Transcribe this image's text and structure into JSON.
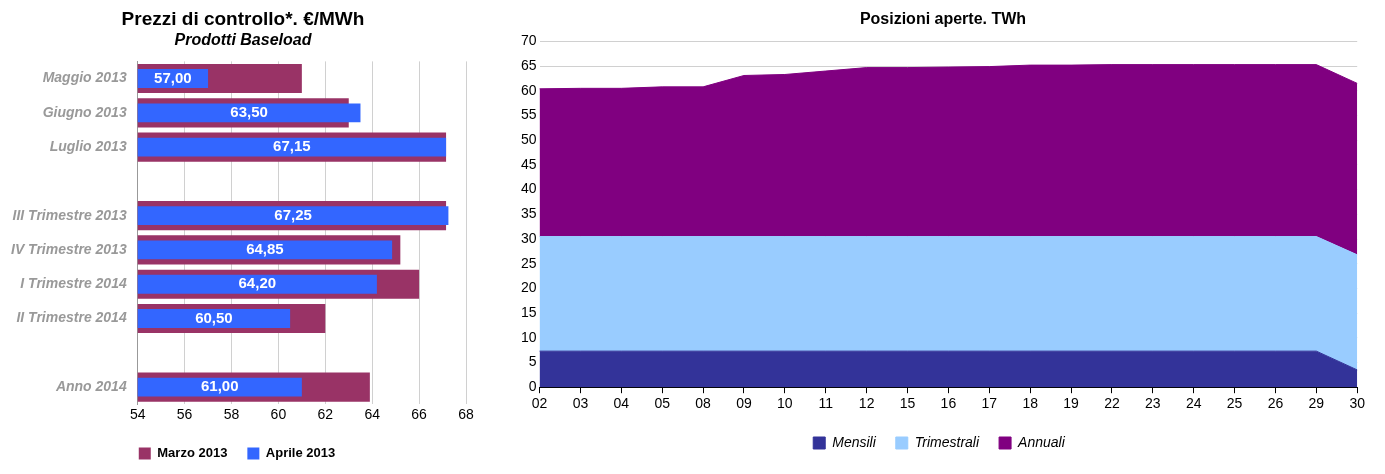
{
  "chart_data": [
    {
      "type": "bar",
      "orientation": "horizontal",
      "title": "Prezzi di controllo*. €/MWh",
      "subtitle": "Prodotti Baseload",
      "categories": [
        "Maggio 2013",
        "Giugno 2013",
        "Luglio 2013",
        null,
        "III Trimestre 2013",
        "IV Trimestre 2013",
        "I Trimestre 2014",
        "II Trimestre 2014",
        null,
        "Anno 2014"
      ],
      "series": [
        {
          "name": "Marzo 2013",
          "color": "#993366",
          "values": [
            61.0,
            63.0,
            67.15,
            null,
            67.15,
            65.2,
            66.0,
            62.0,
            null,
            63.9
          ]
        },
        {
          "name": "Aprile 2013",
          "color": "#3366ff",
          "values": [
            57.0,
            63.5,
            67.15,
            null,
            67.25,
            64.85,
            64.2,
            60.5,
            null,
            61.0
          ],
          "value_labels": [
            "57,00",
            "63,50",
            "67,15",
            null,
            "67,25",
            "64,85",
            "64,20",
            "60,50",
            null,
            "61,00"
          ]
        }
      ],
      "xlim": [
        54,
        68
      ],
      "xticks": [
        54,
        56,
        58,
        60,
        62,
        64,
        66,
        68
      ],
      "grid": "x",
      "legend": "bottom"
    },
    {
      "type": "area",
      "stacked": true,
      "title": "Posizioni aperte. TWh",
      "categories": [
        "02",
        "03",
        "04",
        "05",
        "08",
        "09",
        "10",
        "11",
        "12",
        "15",
        "16",
        "17",
        "18",
        "19",
        "22",
        "23",
        "24",
        "25",
        "26",
        "29",
        "30"
      ],
      "series": [
        {
          "name": "Mensili",
          "color": "#333399",
          "values": [
            7.3,
            7.3,
            7.3,
            7.3,
            7.3,
            7.3,
            7.3,
            7.3,
            7.3,
            7.3,
            7.3,
            7.3,
            7.3,
            7.3,
            7.3,
            7.3,
            7.3,
            7.3,
            7.3,
            7.3,
            3.5
          ]
        },
        {
          "name": "Trimestrali",
          "color": "#99ccff",
          "values": [
            23.2,
            23.2,
            23.2,
            23.2,
            23.2,
            23.2,
            23.2,
            23.2,
            23.2,
            23.2,
            23.2,
            23.2,
            23.2,
            23.2,
            23.2,
            23.2,
            23.2,
            23.2,
            23.2,
            23.2,
            23.3
          ]
        },
        {
          "name": "Annuali",
          "color": "#800080",
          "values": [
            29.9,
            30.0,
            30.0,
            30.3,
            30.3,
            32.6,
            32.8,
            33.5,
            34.2,
            34.2,
            34.3,
            34.4,
            34.7,
            34.7,
            34.8,
            34.8,
            34.8,
            34.8,
            34.8,
            34.8,
            34.7
          ]
        }
      ],
      "ylim": [
        0,
        70
      ],
      "yticks": [
        0,
        5,
        10,
        15,
        20,
        25,
        30,
        35,
        40,
        45,
        50,
        55,
        60,
        65,
        70
      ],
      "grid": "y",
      "legend": "bottom"
    }
  ]
}
